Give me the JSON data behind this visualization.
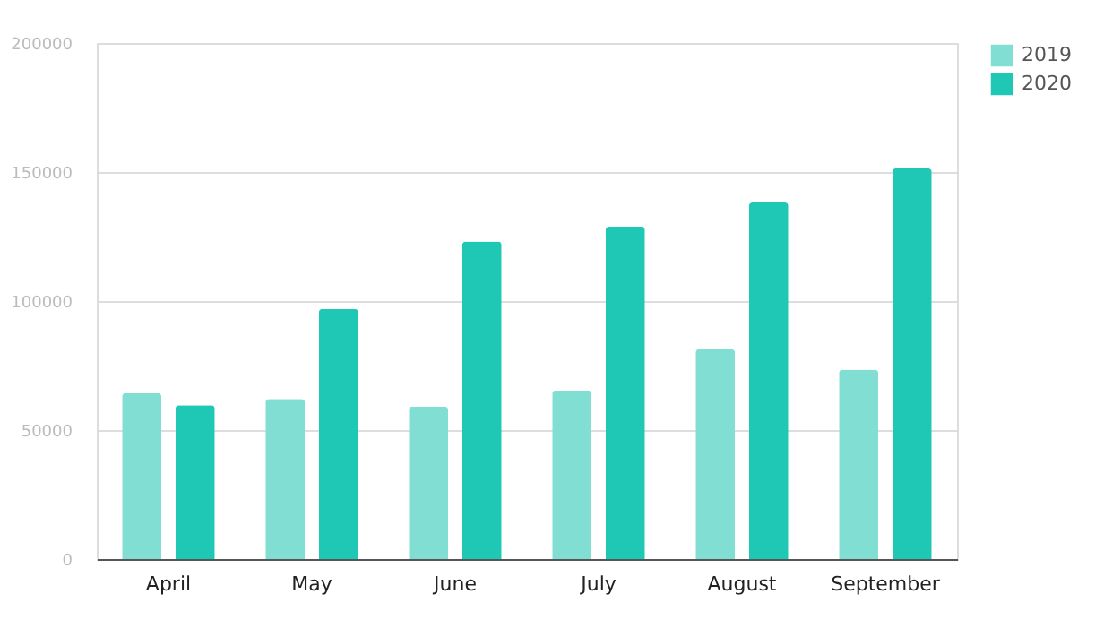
{
  "chart_data": {
    "type": "bar",
    "categories": [
      "April",
      "May",
      "June",
      "July",
      "August",
      "September"
    ],
    "series": [
      {
        "name": "2019",
        "color": "#80dfd2",
        "values": [
          64300,
          62100,
          59100,
          65400,
          81300,
          73400
        ]
      },
      {
        "name": "2020",
        "color": "#1fc8b5",
        "values": [
          59600,
          97000,
          123100,
          128800,
          138200,
          151400
        ]
      }
    ],
    "ylim": [
      0,
      200000
    ],
    "yticks": [
      0,
      50000,
      100000,
      150000,
      200000
    ],
    "grid": "y",
    "legend": "top right"
  }
}
